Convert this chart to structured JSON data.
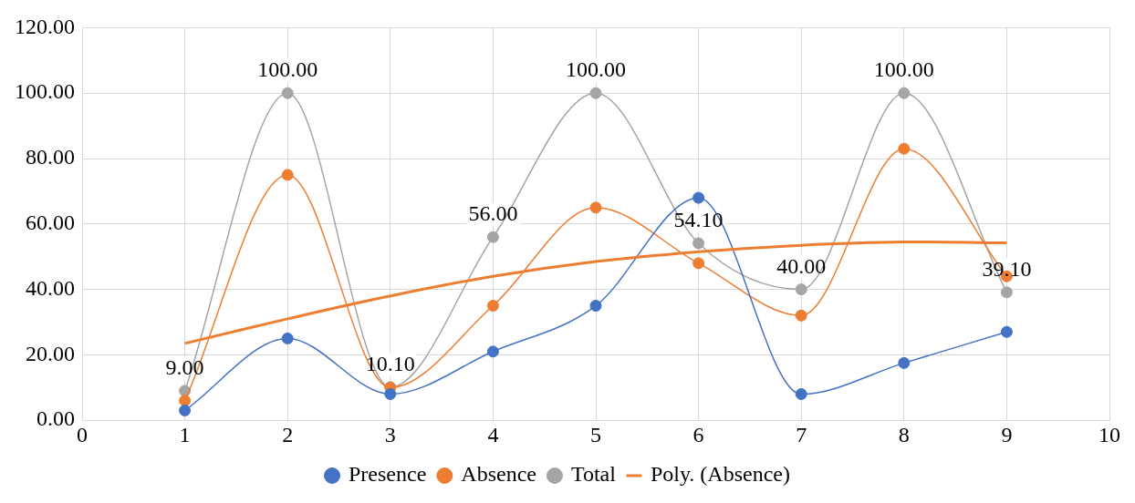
{
  "chart_data": {
    "type": "line",
    "x": [
      1,
      2,
      3,
      4,
      5,
      6,
      7,
      8,
      9
    ],
    "series": [
      {
        "name": "Presence",
        "color": "#4472c4",
        "values": [
          3,
          25,
          8,
          21,
          35,
          68,
          8,
          17.5,
          27
        ]
      },
      {
        "name": "Absence",
        "color": "#ed7d31",
        "values": [
          6,
          75,
          10,
          35,
          65,
          48,
          32,
          83,
          44
        ]
      },
      {
        "name": "Total",
        "color": "#a5a5a5",
        "values": [
          9,
          100,
          10.1,
          56,
          100,
          54.1,
          40,
          100,
          39.1
        ],
        "value_labels": [
          "9.00",
          "100.00",
          "10.10",
          "56.00",
          "100.00",
          "54.10",
          "40.00",
          "100.00",
          "39.10"
        ]
      },
      {
        "name": "Poly. (Absence)",
        "type": "line",
        "color": "#ed7d31",
        "marker": "none",
        "x": [
          1,
          2,
          3,
          4,
          5,
          6,
          7,
          8,
          9
        ],
        "values": [
          23.5,
          31,
          38,
          44,
          48.5,
          51.5,
          53.5,
          54.5,
          54.2
        ]
      }
    ],
    "xlim": [
      0,
      10
    ],
    "xticks": [
      0,
      1,
      2,
      3,
      4,
      5,
      6,
      7,
      8,
      9,
      10
    ],
    "ylim": [
      0,
      120
    ],
    "yticks": [
      {
        "value": 0,
        "label": "0.00"
      },
      {
        "value": 20,
        "label": "20.00"
      },
      {
        "value": 40,
        "label": "40.00"
      },
      {
        "value": 60,
        "label": "60.00"
      },
      {
        "value": 80,
        "label": "80.00"
      },
      {
        "value": 100,
        "label": "100.00"
      },
      {
        "value": 120,
        "label": "120.00"
      }
    ],
    "grid": true,
    "legend": "bottom",
    "marker": "circle"
  }
}
